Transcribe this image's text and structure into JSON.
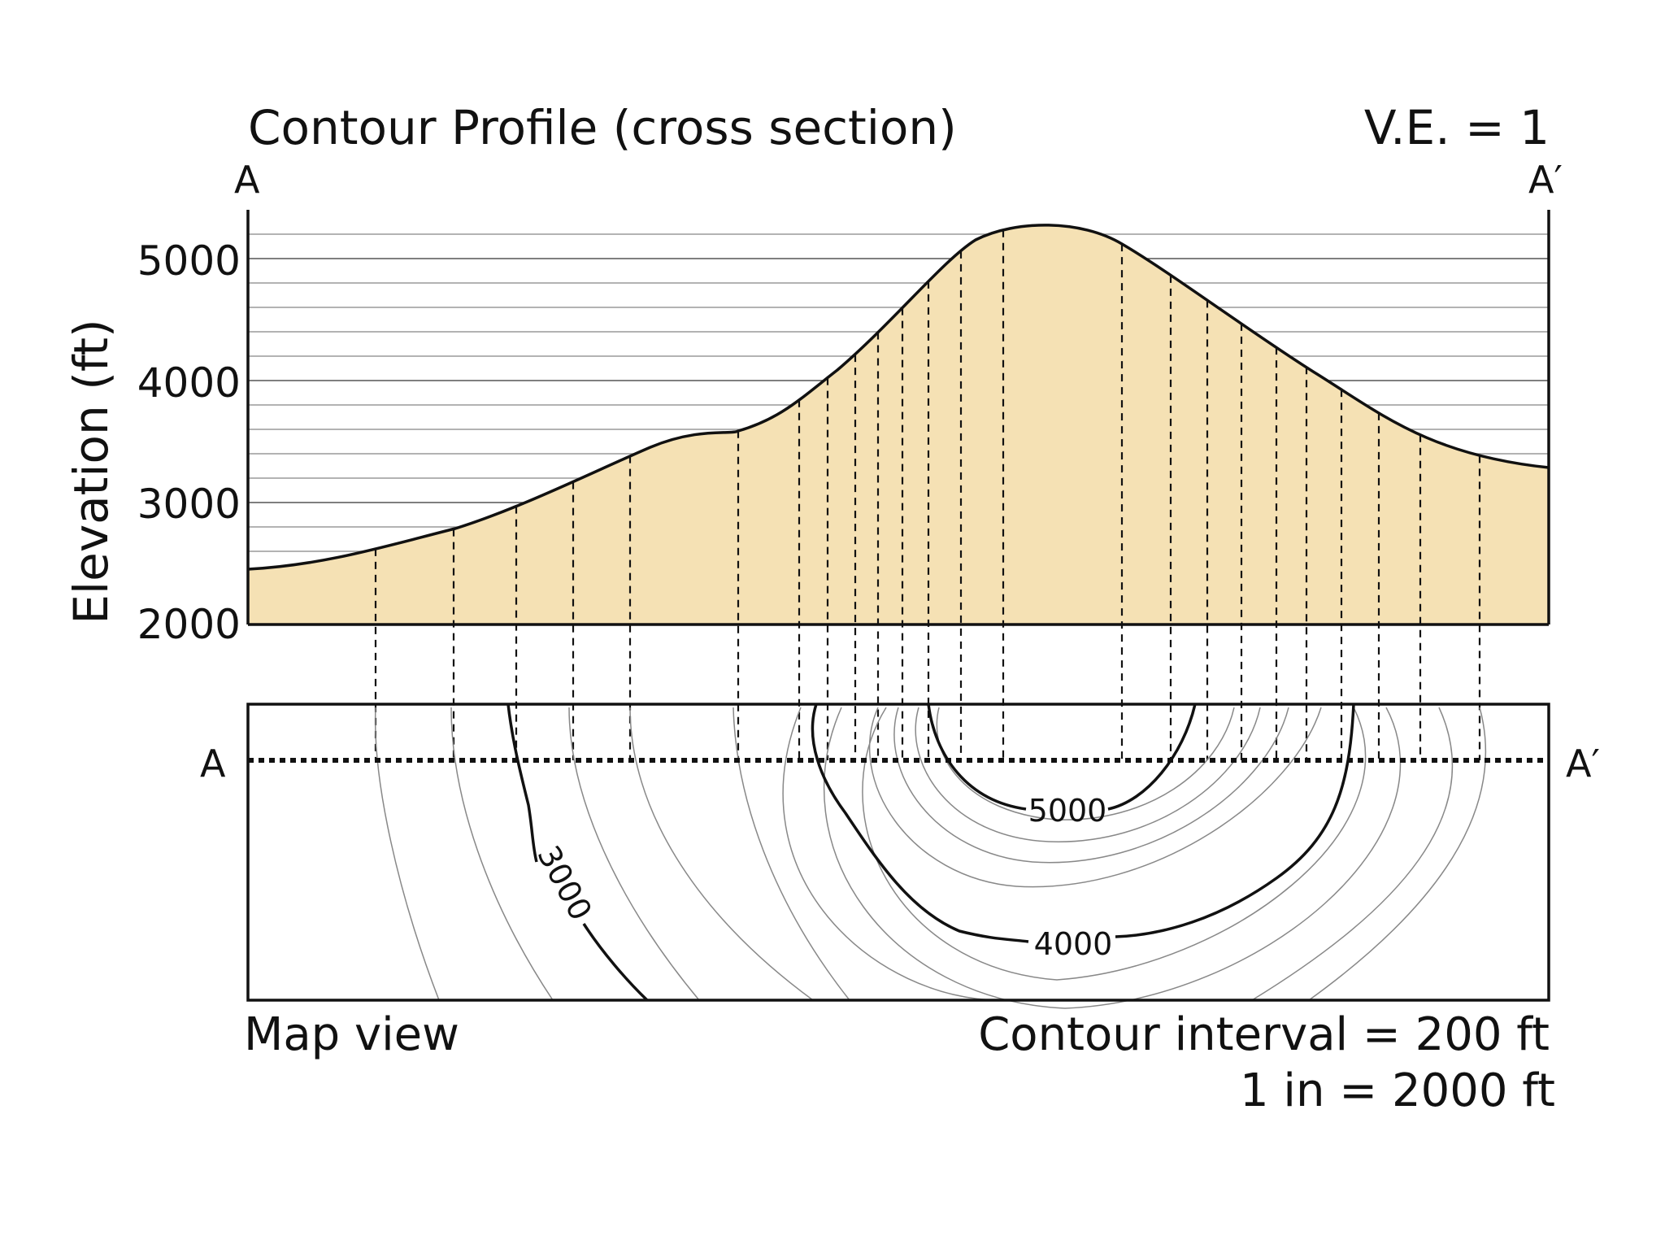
{
  "title": "Contour Profile (cross section)",
  "vertical_exaggeration": "V.E. = 1",
  "profile": {
    "endpoint_start": "A",
    "endpoint_end": "A′",
    "y_axis_label": "Elevation (ft)",
    "y_ticks": [
      "5000",
      "4000",
      "3000",
      "2000"
    ],
    "y_range": [
      2000,
      5400
    ],
    "grid_interval_ft": 200,
    "fill_color": "#f5e1b4",
    "profile_samples_ft": [
      2450,
      2600,
      2800,
      3000,
      3200,
      3400,
      3600,
      3800,
      4200,
      4600,
      5000,
      5300,
      5000,
      4600,
      4200,
      3800,
      3600,
      3400,
      3300
    ]
  },
  "map": {
    "label": "Map view",
    "endpoint_start": "A",
    "endpoint_end": "A′",
    "contour_labels": [
      "5000",
      "4000",
      "3000"
    ],
    "contour_interval": "Contour interval = 200 ft",
    "scale": "1 in = 2000 ft"
  }
}
